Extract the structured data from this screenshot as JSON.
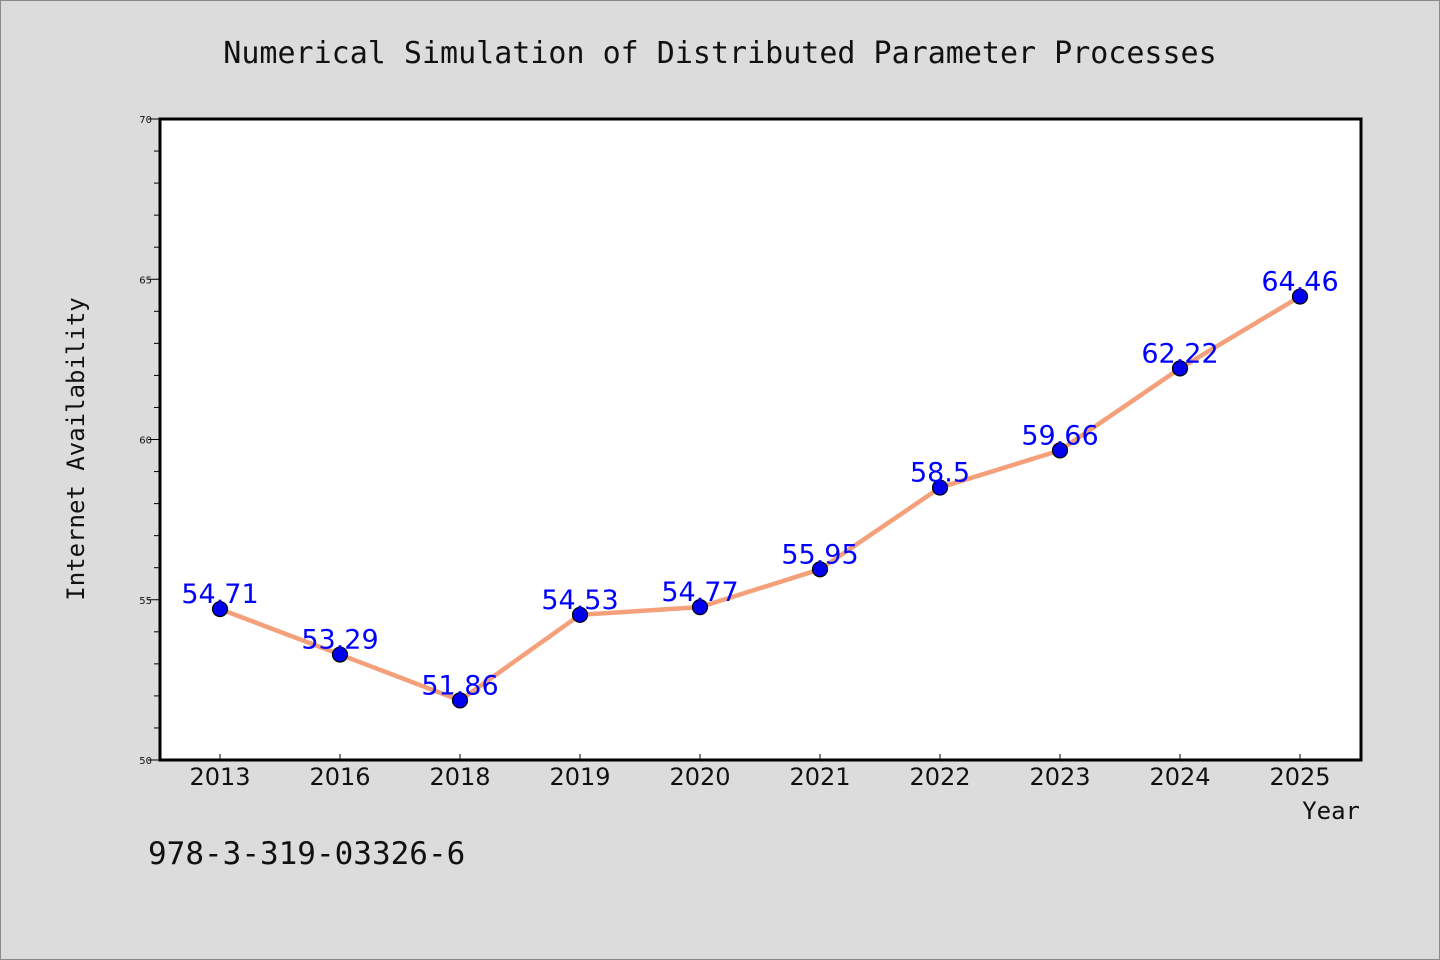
{
  "chart_data": {
    "type": "line",
    "title": "Numerical Simulation of Distributed Parameter Processes",
    "xlabel": "Year",
    "ylabel": "Internet Availability",
    "categories": [
      "2013",
      "2016",
      "2018",
      "2019",
      "2020",
      "2021",
      "2022",
      "2023",
      "2024",
      "2025"
    ],
    "series": [
      {
        "values": [
          54.71,
          53.29,
          51.86,
          54.53,
          54.77,
          55.95,
          58.5,
          59.66,
          62.22,
          64.46
        ],
        "data_labels": [
          "54.71",
          "53.29",
          "51.86",
          "54.53",
          "54.77",
          "55.95",
          "58.5",
          "59.66",
          "62.22",
          "64.46"
        ]
      }
    ],
    "ylim": [
      50,
      70
    ],
    "yticks": [
      "50",
      "55",
      "60",
      "65",
      "70"
    ],
    "grid": false,
    "legend": "none",
    "colors": {
      "line": "#f4a07a",
      "marker": "#0000ee",
      "marker_edge": "#000000",
      "data_label": "#0000ff",
      "plot_background": "#ffffff",
      "page_background": "#dcdcdc"
    },
    "footnote": "978-3-319-03326-6"
  }
}
